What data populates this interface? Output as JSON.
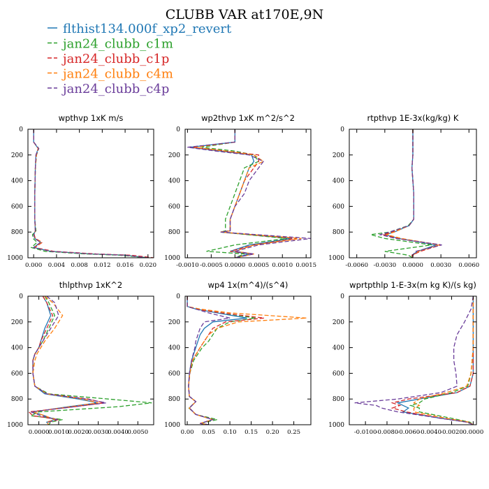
{
  "title": "CLUBB VAR at170E,9N",
  "legend": [
    {
      "label": "flthist134.000f_xp2_revert",
      "color": "#1f77b4",
      "dash": "none"
    },
    {
      "label": "jan24_clubb_c1m",
      "color": "#2ca02c",
      "dash": "6,3"
    },
    {
      "label": "jan24_clubb_c1p",
      "color": "#d62728",
      "dash": "6,3"
    },
    {
      "label": "jan24_clubb_c4m",
      "color": "#ff7f0e",
      "dash": "6,3"
    },
    {
      "label": "jan24_clubb_c4p",
      "color": "#6a3d9a",
      "dash": "6,3"
    }
  ],
  "chart_data": [
    {
      "type": "line",
      "title": "wpthvp  1xK m/s",
      "xlim": [
        -0.001,
        0.021
      ],
      "ylim": [
        1000,
        0
      ],
      "xticks": [
        0.0,
        0.004,
        0.008,
        0.012,
        0.016,
        0.02
      ],
      "xticklabels": [
        "0.000",
        "0.004",
        "0.008",
        "0.012",
        "0.016",
        "0.020"
      ],
      "yticks": [
        0,
        200,
        400,
        600,
        800,
        1000
      ],
      "y": [
        0,
        100,
        150,
        200,
        300,
        500,
        700,
        790,
        820,
        850,
        880,
        920,
        950,
        970,
        980,
        1000
      ],
      "series": [
        {
          "values": [
            0.0,
            0.0,
            0.0008,
            0.0004,
            0.0003,
            0.0002,
            0.0002,
            0.0003,
            0.0,
            0.0002,
            0.0012,
            0.0,
            0.003,
            0.01,
            0.016,
            0.02
          ]
        },
        {
          "values": [
            0.0,
            0.0,
            0.0009,
            0.0005,
            0.0003,
            0.0002,
            0.0002,
            0.0004,
            -0.0002,
            -0.0001,
            0.0006,
            -0.0004,
            0.002,
            0.009,
            0.015,
            0.02
          ]
        },
        {
          "values": [
            0.0,
            0.0,
            0.0008,
            0.0004,
            0.0003,
            0.0002,
            0.0002,
            0.0003,
            0.0001,
            0.0003,
            0.0015,
            0.0002,
            0.0035,
            0.011,
            0.017,
            0.021
          ]
        },
        {
          "values": [
            0.0,
            0.0,
            0.0008,
            0.0005,
            0.0003,
            0.0002,
            0.0002,
            0.0003,
            0.0,
            0.0003,
            0.0014,
            0.0001,
            0.003,
            0.01,
            0.016,
            0.02
          ]
        },
        {
          "values": [
            0.0,
            0.0,
            0.0009,
            0.0004,
            0.0003,
            0.0002,
            0.0002,
            0.0003,
            0.0,
            0.0002,
            0.0012,
            0.0,
            0.003,
            0.01,
            0.016,
            0.02
          ]
        }
      ]
    },
    {
      "type": "line",
      "title": "wp2thvp  1xK m^2/s^2",
      "xlim": [
        -0.00105,
        0.0016
      ],
      "ylim": [
        1000,
        0
      ],
      "xticks": [
        -0.001,
        -0.0005,
        0.0,
        0.0005,
        0.001,
        0.0015
      ],
      "xticklabels": [
        "-0.0010",
        "-0.0005",
        "0.0000",
        "0.0005",
        "0.0010",
        "0.0015"
      ],
      "yticks": [
        0,
        200,
        400,
        600,
        800,
        1000
      ],
      "y": [
        0,
        100,
        140,
        170,
        200,
        250,
        300,
        400,
        500,
        600,
        700,
        790,
        800,
        850,
        900,
        950,
        970,
        1000
      ],
      "series": [
        {
          "values": [
            0.0,
            0.0,
            -0.00095,
            -0.0003,
            0.00035,
            0.0004,
            0.0003,
            0.0002,
            0.0001,
            0.0,
            -0.0001,
            -0.0001,
            -0.0003,
            0.0012,
            0.0003,
            -0.0001,
            0.0003,
            0.0
          ]
        },
        {
          "values": [
            0.0,
            0.0,
            -0.0007,
            0.0,
            0.0004,
            0.0005,
            0.0002,
            0.0001,
            0.0,
            -0.0001,
            -0.0002,
            -0.0002,
            -0.0003,
            0.0011,
            0.0,
            -0.0006,
            0.0002,
            0.0
          ]
        },
        {
          "values": [
            0.0,
            0.0,
            -0.0009,
            -0.0002,
            0.0005,
            0.0005,
            0.0004,
            0.0002,
            0.0001,
            0.0,
            -0.0001,
            -0.0001,
            -0.0003,
            0.0013,
            0.0004,
            -0.0001,
            0.0004,
            0.0
          ]
        },
        {
          "values": [
            0.0,
            0.0,
            -0.00085,
            -0.0002,
            0.0004,
            0.0006,
            0.0003,
            0.0002,
            0.0001,
            0.0,
            -0.0001,
            -0.0001,
            -0.0003,
            0.0014,
            0.0004,
            0.0,
            0.0004,
            0.0
          ]
        },
        {
          "values": [
            0.0,
            0.0,
            -0.001,
            -0.0004,
            0.0003,
            0.0006,
            0.0005,
            0.0003,
            0.0002,
            0.0,
            -0.0001,
            -0.0001,
            -0.0003,
            0.0016,
            0.0005,
            0.0,
            0.0004,
            0.0
          ]
        }
      ]
    },
    {
      "type": "line",
      "title": "rtpthvp  1E-3x(kg/kg) K",
      "xlim": [
        -0.0068,
        0.0068
      ],
      "ylim": [
        1000,
        0
      ],
      "xticks": [
        -0.006,
        -0.003,
        0.0,
        0.003,
        0.006
      ],
      "xticklabels": [
        "-0.0060",
        "-0.0030",
        "0.0000",
        "0.0030",
        "0.0060"
      ],
      "yticks": [
        0,
        200,
        400,
        600,
        800,
        1000
      ],
      "y": [
        0,
        100,
        200,
        300,
        400,
        500,
        600,
        700,
        750,
        800,
        820,
        850,
        900,
        950,
        980,
        1000
      ],
      "series": [
        {
          "values": [
            0.0,
            0.0,
            0.0,
            -0.0001,
            0.0,
            0.0001,
            0.0001,
            0.0001,
            -0.0004,
            -0.002,
            -0.003,
            -0.0015,
            0.0025,
            0.0005,
            -0.0001,
            0.0
          ]
        },
        {
          "values": [
            0.0,
            0.0,
            0.0,
            -0.0001,
            0.0,
            0.0001,
            0.0001,
            0.0001,
            -0.0005,
            -0.0025,
            -0.0045,
            -0.003,
            0.002,
            -0.003,
            -0.0005,
            0.0
          ]
        },
        {
          "values": [
            0.0,
            0.0,
            0.0,
            -0.0001,
            0.0,
            0.0001,
            0.0001,
            0.0001,
            -0.0004,
            -0.0022,
            -0.0032,
            -0.0016,
            0.003,
            0.0008,
            -0.0001,
            0.0
          ]
        },
        {
          "values": [
            0.0,
            0.0,
            0.0,
            -0.0001,
            0.0,
            0.0001,
            0.0001,
            0.0001,
            -0.0004,
            -0.002,
            -0.0028,
            -0.0012,
            0.0028,
            0.0006,
            0.0,
            0.0
          ]
        },
        {
          "values": [
            0.0,
            0.0,
            0.0,
            -0.0001,
            0.0,
            0.0001,
            0.0001,
            0.0001,
            -0.0004,
            -0.0025,
            -0.0035,
            -0.0018,
            0.0031,
            0.0003,
            0.0,
            0.0
          ]
        }
      ]
    },
    {
      "type": "line",
      "title": "thlpthvp  1xK^2",
      "xlim": [
        -0.00055,
        0.0058
      ],
      "ylim": [
        1000,
        0
      ],
      "xticks": [
        0.0,
        0.001,
        0.002,
        0.003,
        0.004,
        0.005
      ],
      "xticklabels": [
        "0.0000",
        "0.0010",
        "0.0020",
        "0.0030",
        "0.0040",
        "0.0050"
      ],
      "yticks": [
        0,
        200,
        400,
        600,
        800,
        1000
      ],
      "y": [
        0,
        50,
        150,
        250,
        350,
        400,
        450,
        500,
        600,
        700,
        760,
        800,
        830,
        860,
        900,
        930,
        960,
        980,
        1000
      ],
      "series": [
        {
          "values": [
            0.0002,
            0.0004,
            0.0006,
            0.0003,
            0.0001,
            0.0,
            -0.0002,
            -0.0003,
            -0.0003,
            -0.0002,
            0.0003,
            0.002,
            0.003,
            0.0015,
            -0.0003,
            0.0003,
            0.0008,
            0.0004,
            0.0005
          ]
        },
        {
          "values": [
            0.0003,
            0.0005,
            0.0008,
            0.0005,
            0.0002,
            0.0,
            -0.0002,
            -0.0003,
            -0.0003,
            -0.0002,
            0.0005,
            0.0035,
            0.0057,
            0.004,
            0.0,
            -0.0004,
            0.0012,
            0.0006,
            0.0005
          ]
        },
        {
          "values": [
            0.0002,
            0.0004,
            0.0007,
            0.0004,
            0.0001,
            0.0,
            -0.0002,
            -0.0003,
            -0.0003,
            -0.0002,
            0.0004,
            0.0025,
            0.0033,
            0.0018,
            -0.0005,
            -0.0003,
            0.001,
            0.0005,
            0.0005
          ]
        },
        {
          "values": [
            0.0003,
            0.0007,
            0.0012,
            0.0008,
            0.0003,
            0.0001,
            -0.0001,
            -0.0002,
            -0.0003,
            -0.0002,
            0.0004,
            0.0022,
            0.003,
            0.0016,
            -0.0003,
            0.0003,
            0.0008,
            0.0004,
            0.0005
          ]
        },
        {
          "values": [
            0.0004,
            0.0008,
            0.001,
            0.0006,
            0.0002,
            0.0,
            -0.0002,
            -0.0003,
            -0.0003,
            -0.0002,
            0.0004,
            0.0024,
            0.0034,
            0.0018,
            -0.0004,
            0.0001,
            0.0009,
            0.0005,
            0.0005
          ]
        }
      ]
    },
    {
      "type": "line",
      "title": "wp4  1x(m^4)/(s^4)",
      "xlim": [
        -0.005,
        0.29
      ],
      "ylim": [
        1000,
        0
      ],
      "xticks": [
        0.0,
        0.05,
        0.1,
        0.15,
        0.2,
        0.25
      ],
      "xticklabels": [
        "0.00",
        "0.05",
        "0.10",
        "0.15",
        "0.20",
        "0.25"
      ],
      "yticks": [
        0,
        200,
        400,
        600,
        800,
        1000
      ],
      "y": [
        0,
        80,
        100,
        130,
        170,
        200,
        250,
        300,
        350,
        400,
        500,
        600,
        700,
        780,
        820,
        870,
        920,
        960,
        990,
        1000
      ],
      "series": [
        {
          "values": [
            0.0,
            0.0,
            0.02,
            0.07,
            0.14,
            0.06,
            0.04,
            0.03,
            0.025,
            0.02,
            0.01,
            0.005,
            0.003,
            0.005,
            0.02,
            0.005,
            0.02,
            0.06,
            0.03,
            0.05
          ]
        },
        {
          "values": [
            0.0,
            0.0,
            0.02,
            0.08,
            0.16,
            0.1,
            0.07,
            0.06,
            0.05,
            0.035,
            0.015,
            0.006,
            0.003,
            0.005,
            0.02,
            0.004,
            0.02,
            0.07,
            0.03,
            0.05
          ]
        },
        {
          "values": [
            0.0,
            0.0,
            0.02,
            0.08,
            0.18,
            0.09,
            0.06,
            0.05,
            0.04,
            0.03,
            0.012,
            0.006,
            0.003,
            0.005,
            0.02,
            0.005,
            0.02,
            0.06,
            0.03,
            0.05
          ]
        },
        {
          "values": [
            0.0,
            0.0,
            0.03,
            0.1,
            0.28,
            0.12,
            0.07,
            0.05,
            0.04,
            0.03,
            0.012,
            0.006,
            0.003,
            0.005,
            0.02,
            0.005,
            0.02,
            0.06,
            0.03,
            0.05
          ]
        },
        {
          "values": [
            0.0,
            0.0,
            0.02,
            0.05,
            0.1,
            0.04,
            0.03,
            0.025,
            0.02,
            0.018,
            0.01,
            0.005,
            0.003,
            0.005,
            0.02,
            0.005,
            0.02,
            0.06,
            0.03,
            0.05
          ]
        }
      ]
    },
    {
      "type": "line",
      "title": "wprtpthlp  1-E-3x(m kg K)/(s kg)",
      "xlim": [
        -0.0115,
        0.0003
      ],
      "ylim": [
        1000,
        0
      ],
      "xticks": [
        -0.01,
        -0.008,
        -0.006,
        -0.004,
        -0.002,
        0.0
      ],
      "xticklabels": [
        "-0.0100",
        "-0.0080",
        "-0.0060",
        "-0.0040",
        "-0.0020",
        "0.0000"
      ],
      "yticks": [
        0,
        200,
        400,
        600,
        800,
        1000
      ],
      "y": [
        0,
        100,
        200,
        300,
        400,
        500,
        600,
        700,
        750,
        800,
        830,
        850,
        870,
        900,
        950,
        980,
        1000
      ],
      "series": [
        {
          "values": [
            0.0,
            0.0,
            0.0,
            0.0,
            0.0,
            0.0,
            0.0,
            -0.0003,
            -0.0015,
            -0.005,
            -0.007,
            -0.0065,
            -0.006,
            -0.0065,
            -0.003,
            -0.0005,
            0.0
          ]
        },
        {
          "values": [
            0.0,
            0.0,
            0.0,
            0.0,
            0.0,
            -0.0001,
            -0.0002,
            -0.0005,
            -0.002,
            -0.0045,
            -0.005,
            -0.0058,
            -0.005,
            -0.005,
            -0.002,
            -0.0003,
            0.0
          ]
        },
        {
          "values": [
            0.0,
            0.0,
            0.0,
            0.0,
            0.0,
            0.0,
            0.0,
            -0.0003,
            -0.0015,
            -0.006,
            -0.0075,
            -0.0068,
            -0.0075,
            -0.0062,
            -0.003,
            -0.0005,
            0.0
          ]
        },
        {
          "values": [
            0.0,
            0.0,
            0.0,
            0.0,
            0.0,
            -0.0001,
            -0.0002,
            -0.0006,
            -0.0025,
            -0.005,
            -0.0055,
            -0.005,
            -0.0055,
            -0.0055,
            -0.0025,
            -0.0004,
            0.0
          ]
        },
        {
          "values": [
            0.0,
            -0.0002,
            -0.0008,
            -0.0015,
            -0.0018,
            -0.0018,
            -0.0016,
            -0.0015,
            -0.003,
            -0.007,
            -0.011,
            -0.009,
            -0.0085,
            -0.007,
            -0.003,
            -0.0006,
            0.0
          ]
        }
      ]
    }
  ]
}
